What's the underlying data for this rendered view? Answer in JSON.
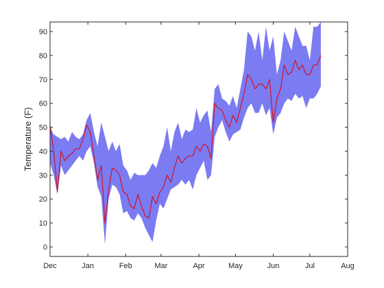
{
  "chart_data": {
    "type": "area",
    "title": "",
    "xlabel": "",
    "ylabel": "Temperature (F)",
    "x_unit": "date",
    "x_start": "2011-12-01",
    "xlim": [
      "2011-12-01",
      "2012-08-01"
    ],
    "ylim": [
      -4,
      94
    ],
    "x_ticks": [
      {
        "date": "2011-12-01",
        "label": "Dec"
      },
      {
        "date": "2012-01-01",
        "label": "Jan"
      },
      {
        "date": "2012-02-01",
        "label": "Feb"
      },
      {
        "date": "2012-03-01",
        "label": "Mar"
      },
      {
        "date": "2012-04-01",
        "label": "Apr"
      },
      {
        "date": "2012-05-01",
        "label": "May"
      },
      {
        "date": "2012-06-01",
        "label": "Jun"
      },
      {
        "date": "2012-07-01",
        "label": "Jul"
      },
      {
        "date": "2012-08-01",
        "label": "Aug"
      }
    ],
    "y_ticks": [
      0,
      10,
      20,
      30,
      40,
      50,
      60,
      70,
      80,
      90
    ],
    "grid": false,
    "series": [
      {
        "kind": "band",
        "color": "#7b7bf2",
        "x": [
          "2011-12-01",
          "2011-12-04",
          "2011-12-07",
          "2011-12-10",
          "2011-12-13",
          "2011-12-16",
          "2011-12-19",
          "2011-12-22",
          "2011-12-25",
          "2011-12-28",
          "2011-12-31",
          "2012-01-03",
          "2012-01-06",
          "2012-01-09",
          "2012-01-12",
          "2012-01-15",
          "2012-01-18",
          "2012-01-21",
          "2012-01-24",
          "2012-01-27",
          "2012-01-30",
          "2012-02-02",
          "2012-02-05",
          "2012-02-08",
          "2012-02-11",
          "2012-02-14",
          "2012-02-17",
          "2012-02-20",
          "2012-02-23",
          "2012-02-26",
          "2012-02-29",
          "2012-03-03",
          "2012-03-06",
          "2012-03-09",
          "2012-03-12",
          "2012-03-15",
          "2012-03-18",
          "2012-03-21",
          "2012-03-24",
          "2012-03-27",
          "2012-03-30",
          "2012-04-02",
          "2012-04-05",
          "2012-04-08",
          "2012-04-11",
          "2012-04-14",
          "2012-04-17",
          "2012-04-20",
          "2012-04-23",
          "2012-04-26",
          "2012-04-29",
          "2012-05-02",
          "2012-05-05",
          "2012-05-08",
          "2012-05-11",
          "2012-05-14",
          "2012-05-17",
          "2012-05-20",
          "2012-05-23",
          "2012-05-26",
          "2012-05-29",
          "2012-06-01",
          "2012-06-04",
          "2012-06-07",
          "2012-06-10",
          "2012-06-13",
          "2012-06-16",
          "2012-06-19",
          "2012-06-22",
          "2012-06-25",
          "2012-06-28",
          "2012-07-01",
          "2012-07-04",
          "2012-07-07",
          "2012-07-10"
        ],
        "upper": [
          50,
          47,
          46,
          45,
          46,
          44,
          48,
          46,
          45,
          47,
          53,
          56,
          48,
          42,
          52,
          46,
          40,
          44,
          40,
          43,
          34,
          32,
          28,
          31,
          30,
          30,
          30,
          32,
          35,
          33,
          38,
          42,
          50,
          40,
          48,
          52,
          45,
          49,
          48,
          49,
          58,
          52,
          55,
          57,
          48,
          66,
          68,
          62,
          61,
          59,
          63,
          58,
          66,
          74,
          90,
          88,
          82,
          90,
          78,
          92,
          82,
          88,
          72,
          78,
          90,
          86,
          82,
          92,
          88,
          84,
          84,
          78,
          92,
          92,
          94
        ],
        "lower": [
          35,
          30,
          22,
          34,
          30,
          32,
          34,
          36,
          38,
          36,
          40,
          42,
          35,
          25,
          21,
          1,
          20,
          26,
          25,
          22,
          14,
          15,
          12,
          11,
          14,
          12,
          8,
          5,
          2,
          11,
          18,
          16,
          20,
          24,
          25,
          26,
          28,
          26,
          28,
          24,
          30,
          33,
          36,
          28,
          30,
          46,
          50,
          53,
          48,
          44,
          47,
          48,
          49,
          54,
          58,
          60,
          56,
          56,
          60,
          55,
          58,
          47,
          54,
          56,
          60,
          62,
          61,
          64,
          62,
          63,
          58,
          62,
          62,
          64,
          67
        ]
      },
      {
        "kind": "line",
        "color": "#e00000",
        "x": [
          "2011-12-01",
          "2011-12-04",
          "2011-12-07",
          "2011-12-10",
          "2011-12-13",
          "2011-12-16",
          "2011-12-19",
          "2011-12-22",
          "2011-12-25",
          "2011-12-28",
          "2011-12-31",
          "2012-01-03",
          "2012-01-06",
          "2012-01-09",
          "2012-01-12",
          "2012-01-15",
          "2012-01-18",
          "2012-01-21",
          "2012-01-24",
          "2012-01-27",
          "2012-01-30",
          "2012-02-02",
          "2012-02-05",
          "2012-02-08",
          "2012-02-11",
          "2012-02-14",
          "2012-02-17",
          "2012-02-20",
          "2012-02-23",
          "2012-02-26",
          "2012-02-29",
          "2012-03-03",
          "2012-03-06",
          "2012-03-09",
          "2012-03-12",
          "2012-03-15",
          "2012-03-18",
          "2012-03-21",
          "2012-03-24",
          "2012-03-27",
          "2012-03-30",
          "2012-04-02",
          "2012-04-05",
          "2012-04-08",
          "2012-04-11",
          "2012-04-14",
          "2012-04-17",
          "2012-04-20",
          "2012-04-23",
          "2012-04-26",
          "2012-04-29",
          "2012-05-02",
          "2012-05-05",
          "2012-05-08",
          "2012-05-11",
          "2012-05-14",
          "2012-05-17",
          "2012-05-20",
          "2012-05-23",
          "2012-05-26",
          "2012-05-29",
          "2012-06-01",
          "2012-06-04",
          "2012-06-07",
          "2012-06-10",
          "2012-06-13",
          "2012-06-16",
          "2012-06-19",
          "2012-06-22",
          "2012-06-25",
          "2012-06-28",
          "2012-07-01",
          "2012-07-04",
          "2012-07-07",
          "2012-07-10"
        ],
        "values": [
          51,
          40,
          23,
          40,
          36,
          38,
          39,
          41,
          41,
          45,
          51,
          48,
          38,
          28,
          34,
          10,
          24,
          33,
          32,
          30,
          23,
          22,
          17,
          16,
          22,
          17,
          13,
          12,
          21,
          18,
          23,
          25,
          30,
          27,
          33,
          38,
          35,
          37,
          38,
          38,
          42,
          40,
          43,
          42,
          37,
          60,
          58,
          57,
          53,
          50,
          55,
          52,
          58,
          64,
          72,
          70,
          66,
          68,
          68,
          66,
          70,
          52,
          62,
          66,
          76,
          72,
          73,
          78,
          74,
          76,
          72,
          72,
          76,
          76,
          80
        ]
      }
    ]
  }
}
